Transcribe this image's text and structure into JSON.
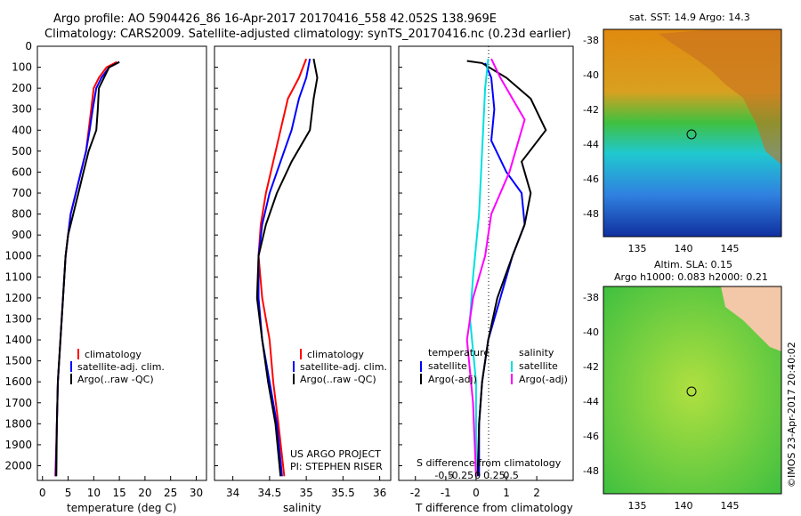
{
  "header": {
    "line1": "Argo profile: AO 5904426_86 16-Apr-2017 20170416_558 42.052S 138.969E",
    "line2": "Climatology: CARS2009. Satellite-adjusted climatology: synTS_20170416.nc (0.23d earlier)"
  },
  "colors": {
    "climatology": "#ff0000",
    "satellite": "#0000ff",
    "argo": "#000000",
    "argo_adj_salinity": "#ff00ff",
    "satellite_salinity": "#00e0e0"
  },
  "depth_axis": {
    "ticks": [
      0,
      100,
      200,
      300,
      400,
      500,
      600,
      700,
      800,
      900,
      1000,
      1100,
      1200,
      1300,
      1400,
      1500,
      1600,
      1700,
      1800,
      1900,
      2000
    ]
  },
  "chart_data": [
    {
      "type": "line",
      "xlabel": "temperature (deg C)",
      "xlim": [
        -1,
        32
      ],
      "ylim": [
        2070,
        0
      ],
      "xticks": [
        0,
        5,
        10,
        15,
        20,
        25,
        30
      ],
      "legend": [
        "climatology",
        "satellite-adj. clim.",
        "Argo(..raw -QC)"
      ],
      "series": [
        {
          "name": "climatology",
          "color": "#ff0000",
          "points": [
            [
              14.5,
              75
            ],
            [
              12.5,
              100
            ],
            [
              11,
              150
            ],
            [
              10,
              200
            ],
            [
              9.5,
              300
            ],
            [
              9,
              400
            ],
            [
              8.5,
              500
            ],
            [
              7.5,
              600
            ],
            [
              6.5,
              700
            ],
            [
              5.5,
              800
            ],
            [
              5,
              900
            ],
            [
              4.5,
              1000
            ],
            [
              4,
              1200
            ],
            [
              3.5,
              1400
            ],
            [
              3,
              1600
            ],
            [
              2.8,
              1800
            ],
            [
              2.5,
              2050
            ]
          ]
        },
        {
          "name": "satellite-adj. clim.",
          "color": "#0000ff",
          "points": [
            [
              15,
              75
            ],
            [
              13,
              100
            ],
            [
              11.5,
              150
            ],
            [
              10.5,
              200
            ],
            [
              9.8,
              300
            ],
            [
              9.2,
              400
            ],
            [
              8.5,
              500
            ],
            [
              7.5,
              600
            ],
            [
              6.5,
              700
            ],
            [
              5.5,
              800
            ],
            [
              5,
              900
            ],
            [
              4.5,
              1000
            ],
            [
              4,
              1200
            ],
            [
              3.5,
              1400
            ],
            [
              3,
              1600
            ],
            [
              2.8,
              1800
            ],
            [
              2.6,
              2050
            ]
          ]
        },
        {
          "name": "Argo(..raw -QC)",
          "color": "#000000",
          "points": [
            [
              15,
              75
            ],
            [
              13,
              100
            ],
            [
              12,
              150
            ],
            [
              11,
              200
            ],
            [
              10.8,
              300
            ],
            [
              10.5,
              400
            ],
            [
              9,
              500
            ],
            [
              8,
              600
            ],
            [
              7,
              700
            ],
            [
              6,
              800
            ],
            [
              5,
              900
            ],
            [
              4.5,
              1000
            ],
            [
              4,
              1200
            ],
            [
              3.5,
              1400
            ],
            [
              3,
              1600
            ],
            [
              2.8,
              1800
            ],
            [
              2.7,
              2050
            ]
          ]
        }
      ]
    },
    {
      "type": "line",
      "xlabel": "salinity",
      "xlim": [
        33.75,
        36.15
      ],
      "ylim": [
        2070,
        0
      ],
      "xticks": [
        34,
        34.5,
        35,
        35.5,
        36
      ],
      "xtick_labels": [
        "34",
        "34.5",
        "35",
        "35.5",
        "36"
      ],
      "legend": [
        "climatology",
        "satellite-adj. clim.",
        "Argo(..raw -QC)"
      ],
      "annotation": [
        "US ARGO PROJECT",
        "PI: STEPHEN RISER"
      ],
      "series": [
        {
          "name": "climatology",
          "color": "#ff0000",
          "points": [
            [
              35.0,
              60
            ],
            [
              34.9,
              150
            ],
            [
              34.75,
              250
            ],
            [
              34.65,
              400
            ],
            [
              34.55,
              550
            ],
            [
              34.45,
              700
            ],
            [
              34.38,
              850
            ],
            [
              34.35,
              1000
            ],
            [
              34.4,
              1200
            ],
            [
              34.5,
              1400
            ],
            [
              34.55,
              1600
            ],
            [
              34.62,
              1800
            ],
            [
              34.7,
              2050
            ]
          ]
        },
        {
          "name": "satellite-adj. clim.",
          "color": "#0000ff",
          "points": [
            [
              35.05,
              60
            ],
            [
              35.0,
              150
            ],
            [
              34.9,
              250
            ],
            [
              34.8,
              400
            ],
            [
              34.65,
              550
            ],
            [
              34.5,
              700
            ],
            [
              34.4,
              850
            ],
            [
              34.35,
              1000
            ],
            [
              34.35,
              1200
            ],
            [
              34.4,
              1400
            ],
            [
              34.5,
              1600
            ],
            [
              34.6,
              1800
            ],
            [
              34.67,
              2050
            ]
          ]
        },
        {
          "name": "Argo(..raw -QC)",
          "color": "#000000",
          "points": [
            [
              35.1,
              60
            ],
            [
              35.15,
              150
            ],
            [
              35.1,
              250
            ],
            [
              35.05,
              400
            ],
            [
              34.8,
              550
            ],
            [
              34.6,
              700
            ],
            [
              34.45,
              850
            ],
            [
              34.35,
              1000
            ],
            [
              34.33,
              1200
            ],
            [
              34.4,
              1400
            ],
            [
              34.48,
              1600
            ],
            [
              34.58,
              1800
            ],
            [
              34.65,
              2050
            ]
          ]
        }
      ]
    },
    {
      "type": "line",
      "xlabel": "T difference from climatology",
      "xlabel_top": "S difference from climatology",
      "xlim": [
        -2.55,
        3.2
      ],
      "ylim": [
        2070,
        0
      ],
      "xticks": [
        -2,
        -1,
        0,
        1,
        2
      ],
      "top_ticks": [
        "-0.5",
        "-0.25",
        "0",
        "0.25",
        "0.5"
      ],
      "legend": [
        "temperature",
        "satellite",
        "Argo(-adj)",
        "salinity",
        "satellite",
        "Argo(-adj)"
      ],
      "series": [
        {
          "name": "satellite",
          "color": "#0000ff",
          "points": [
            [
              0.3,
              80
            ],
            [
              0.5,
              150
            ],
            [
              0.6,
              300
            ],
            [
              0.5,
              450
            ],
            [
              1.0,
              600
            ],
            [
              1.5,
              700
            ],
            [
              1.6,
              850
            ],
            [
              1.2,
              1000
            ],
            [
              0.8,
              1200
            ],
            [
              0.4,
              1400
            ],
            [
              0.2,
              1600
            ],
            [
              0.1,
              1800
            ],
            [
              0.1,
              2050
            ]
          ]
        },
        {
          "name": "Argo(-adj)",
          "color": "#000000",
          "points": [
            [
              -0.3,
              70
            ],
            [
              0.2,
              80
            ],
            [
              1.0,
              150
            ],
            [
              1.8,
              250
            ],
            [
              2.3,
              400
            ],
            [
              1.5,
              550
            ],
            [
              1.8,
              700
            ],
            [
              1.6,
              850
            ],
            [
              1.2,
              1000
            ],
            [
              0.7,
              1200
            ],
            [
              0.4,
              1400
            ],
            [
              0.2,
              1600
            ],
            [
              0.1,
              1800
            ],
            [
              0.05,
              2050
            ]
          ]
        },
        {
          "name": "satellite",
          "color": "#00e0e0",
          "points": [
            [
              0.4,
              60
            ],
            [
              0.3,
              200
            ],
            [
              0.2,
              500
            ],
            [
              0.1,
              800
            ],
            [
              -0.1,
              1100
            ],
            [
              -0.2,
              1300
            ],
            [
              0,
              1600
            ],
            [
              0,
              2050
            ]
          ]
        },
        {
          "name": "Argo(-adj)",
          "color": "#ff00ff",
          "points": [
            [
              0.5,
              60
            ],
            [
              0.8,
              150
            ],
            [
              1.6,
              350
            ],
            [
              1.1,
              600
            ],
            [
              0.5,
              800
            ],
            [
              0.3,
              1000
            ],
            [
              -0.1,
              1200
            ],
            [
              -0.3,
              1400
            ],
            [
              -0.1,
              1700
            ],
            [
              0,
              2050
            ]
          ]
        }
      ]
    }
  ],
  "map_sst": {
    "title": "sat. SST: 14.9 Argo: 14.3",
    "lon_ticks": [
      "135",
      "140",
      "145"
    ],
    "lat_ticks": [
      "-38",
      "-40",
      "-42",
      "-44",
      "-46",
      "-48"
    ]
  },
  "map_sla": {
    "title1": "Altim. SLA: 0.15",
    "title2": "Argo h1000: 0.083 h2000: 0.21",
    "lon_ticks": [
      "135",
      "140",
      "145"
    ],
    "lat_ticks": [
      "-38",
      "-40",
      "-42",
      "-44",
      "-46",
      "-48"
    ],
    "credit": "©IMOS 23-Apr-2017 20:40:02"
  }
}
